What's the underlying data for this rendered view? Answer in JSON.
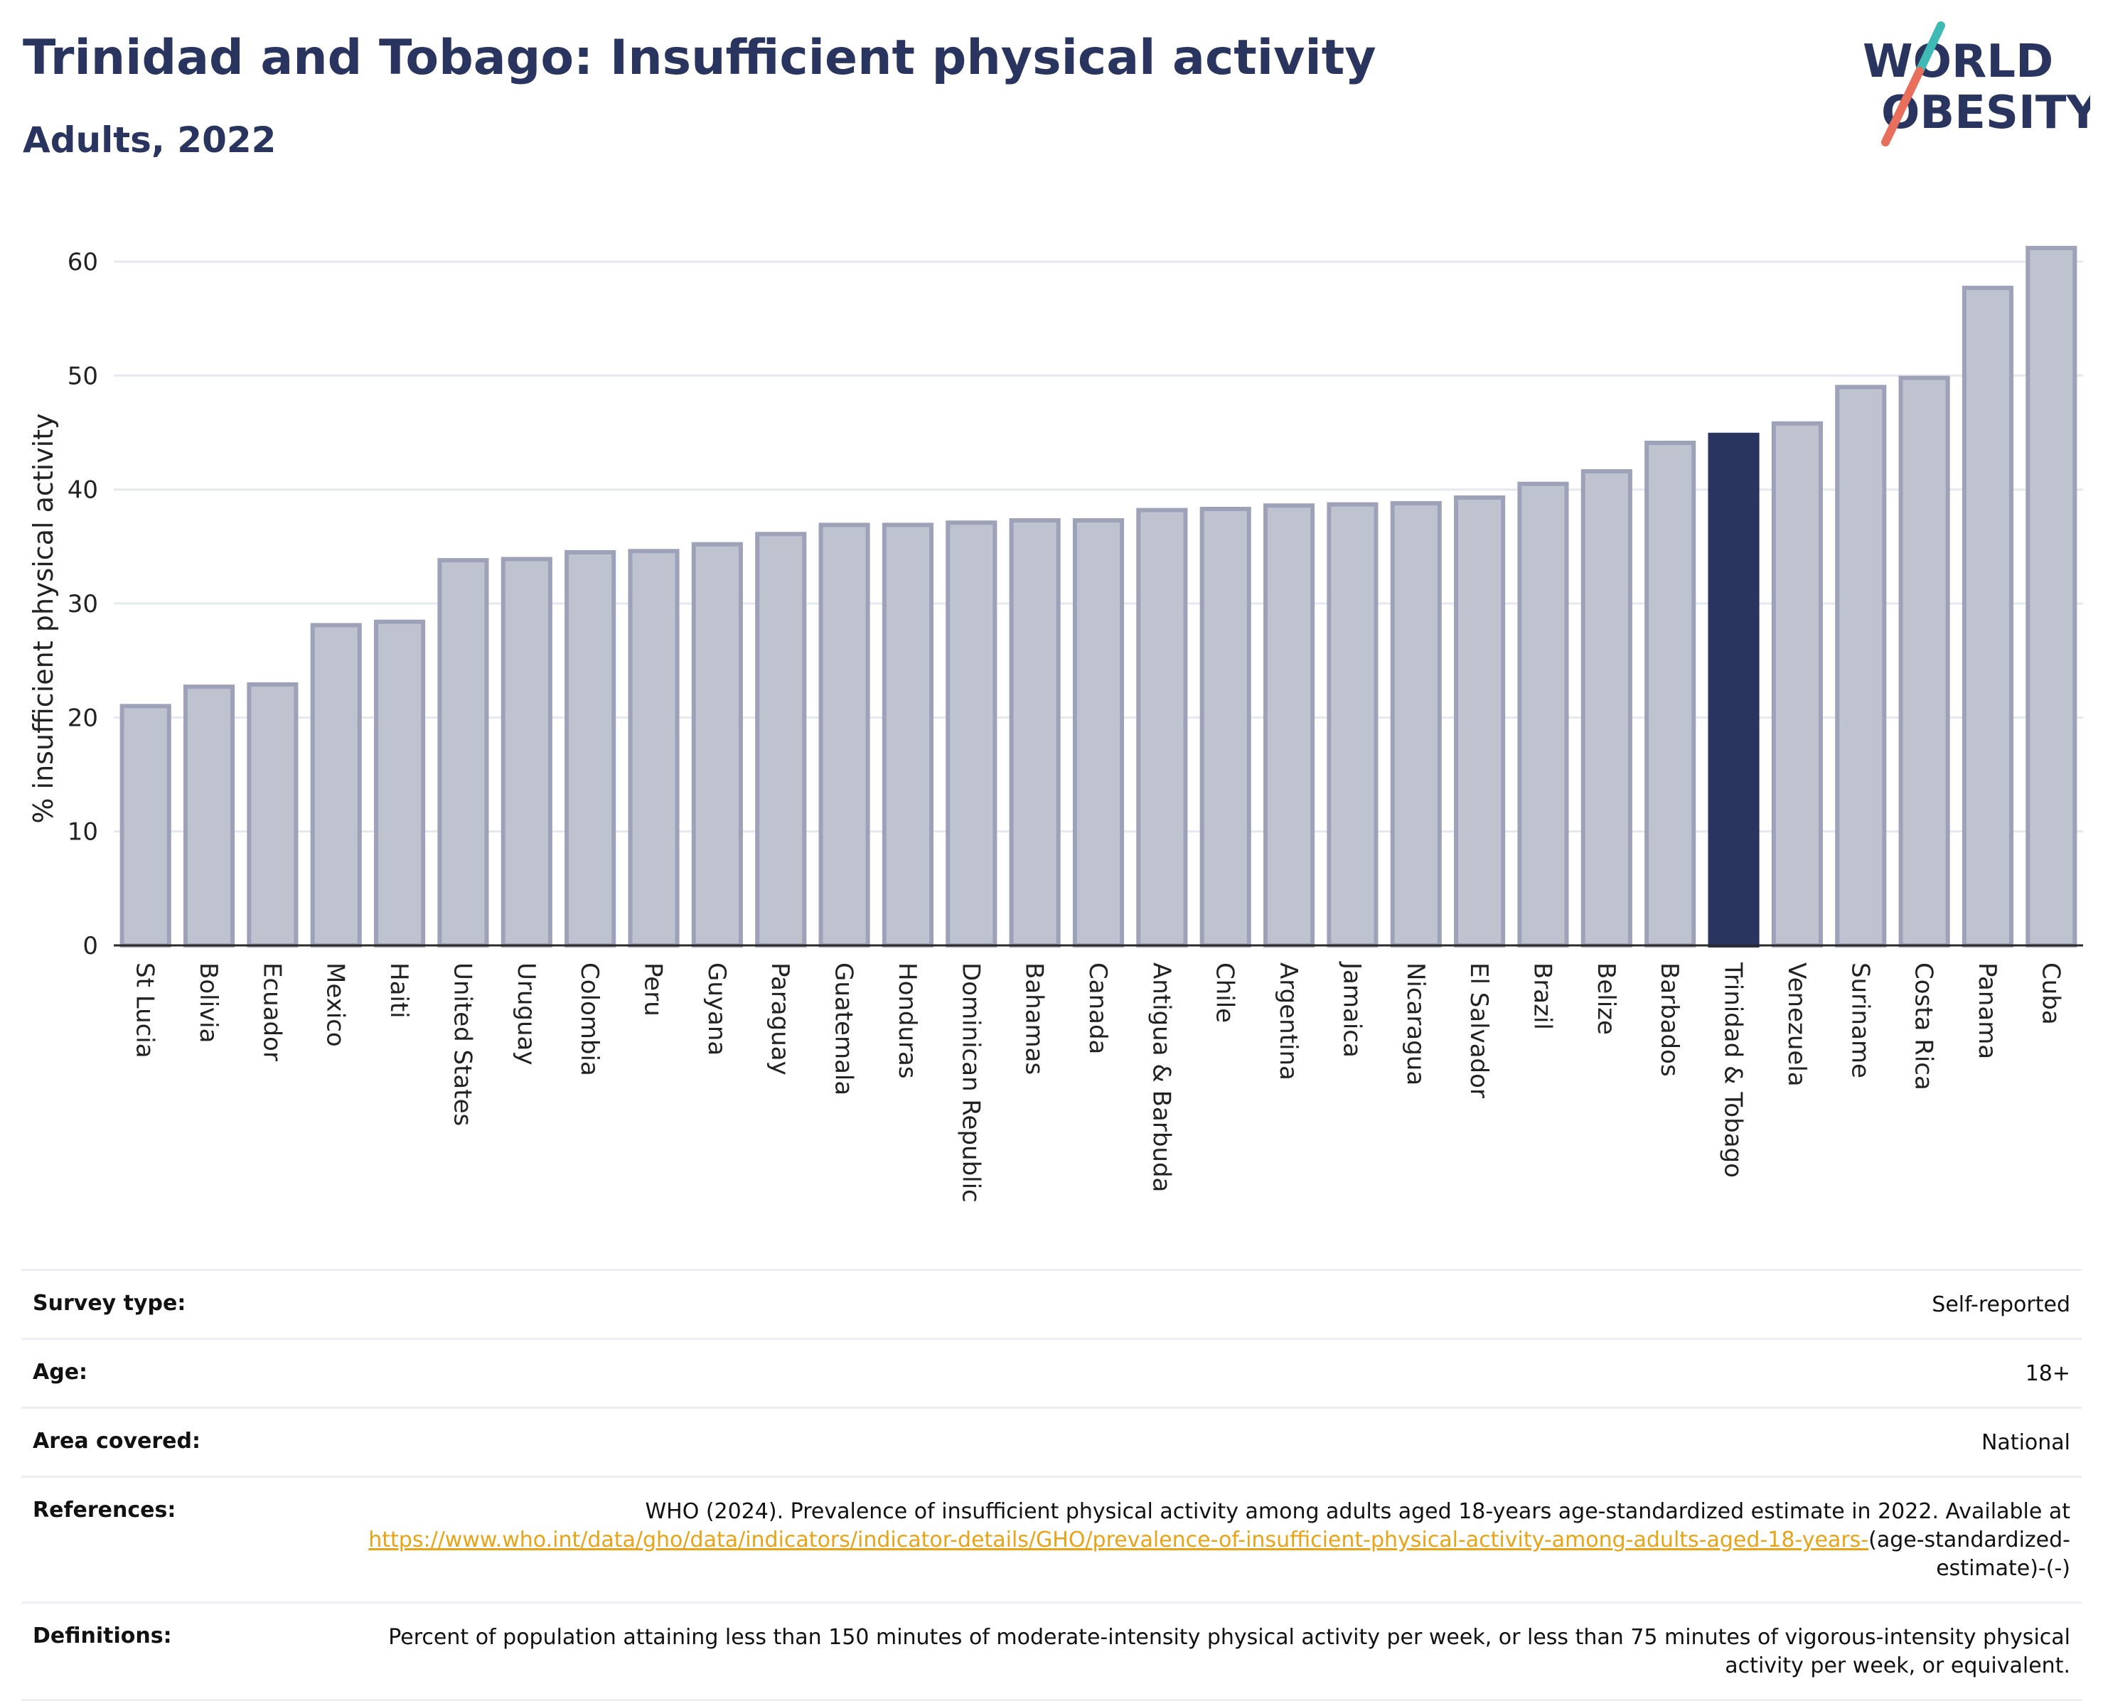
{
  "header": {
    "title": "Trinidad and Tobago: Insufficient physical activity",
    "subtitle": "Adults, 2022"
  },
  "logo": {
    "line1": "WORLD",
    "line2": "OBESITY"
  },
  "colors": {
    "bar_fill": "#bfc2cf",
    "bar_stroke": "#9da2b8",
    "highlight": "#2a355f",
    "title": "#2a355f",
    "grid": "#e6e8ef",
    "logo_teal": "#3fb9b4",
    "logo_coral": "#e86f5c",
    "link": "#e8a317"
  },
  "chart_data": {
    "type": "bar",
    "ylabel": "% insufficient physical activity",
    "ylim": [
      0,
      63
    ],
    "yticks": [
      0,
      10,
      20,
      30,
      40,
      50,
      60
    ],
    "grid": true,
    "highlight": "Trinidad & Tobago",
    "categories": [
      "St Lucia",
      "Bolivia",
      "Ecuador",
      "Mexico",
      "Haiti",
      "United States",
      "Uruguay",
      "Colombia",
      "Peru",
      "Guyana",
      "Paraguay",
      "Guatemala",
      "Honduras",
      "Dominican Republic",
      "Bahamas",
      "Canada",
      "Antigua & Barbuda",
      "Chile",
      "Argentina",
      "Jamaica",
      "Nicaragua",
      "El Salvador",
      "Brazil",
      "Belize",
      "Barbados",
      "Trinidad & Tobago",
      "Venezuela",
      "Suriname",
      "Costa Rica",
      "Panama",
      "Cuba"
    ],
    "values": [
      21.0,
      22.7,
      22.9,
      28.1,
      28.4,
      33.8,
      33.9,
      34.5,
      34.6,
      35.2,
      36.1,
      36.9,
      36.9,
      37.1,
      37.3,
      37.3,
      38.2,
      38.3,
      38.6,
      38.7,
      38.8,
      39.3,
      40.5,
      41.6,
      44.1,
      44.8,
      45.8,
      49.0,
      49.8,
      57.7,
      61.2
    ]
  },
  "info": [
    {
      "key": "Survey type:",
      "value": "Self-reported"
    },
    {
      "key": "Age:",
      "value": "18+"
    },
    {
      "key": "Area covered:",
      "value": "National"
    },
    {
      "key": "References:",
      "value_prefix": "WHO (2024). Prevalence of insufficient physical activity among adults aged 18-years age-standardized estimate in 2022. Available at",
      "link": "https://www.who.int/data/gho/data/indicators/indicator-details/GHO/prevalence-of-insufficient-physical-activity-among-adults-aged-18-years-",
      "value_suffix": "(age-standardized-estimate)-(-)"
    },
    {
      "key": "Definitions:",
      "value": "Percent of population attaining less than 150 minutes of moderate-intensity physical activity per week, or less than 75 minutes of vigorous-intensity physical activity per week, or equivalent."
    }
  ]
}
